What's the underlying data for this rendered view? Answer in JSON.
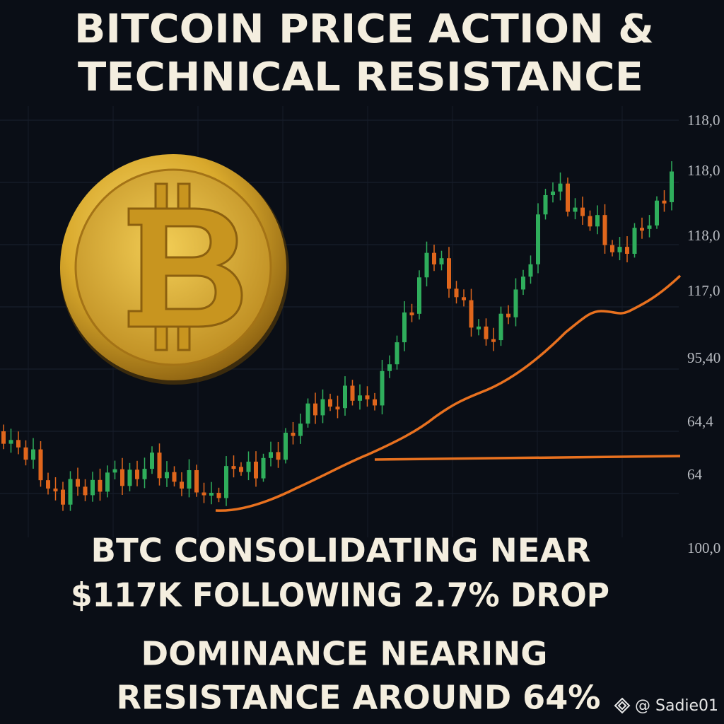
{
  "title": [
    "BITCOIN PRICE ACTION &",
    "TECHNICAL RESISTANCE"
  ],
  "axis_labels": [
    "118,0",
    "118,0",
    "118,0",
    "117,0",
    "95,40",
    "64,4",
    "64",
    "100,0"
  ],
  "headline": [
    "BTC CONSOLIDATING NEAR",
    "$117K FOLLOWING 2.7% DROP"
  ],
  "subheadline": [
    "DOMINANCE NEARING",
    "RESISTANCE AROUND 64%"
  ],
  "watermark": "@ Sadie01"
}
